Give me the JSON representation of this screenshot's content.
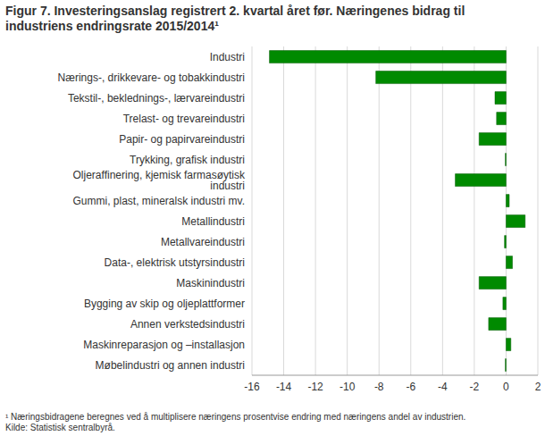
{
  "chart_data": {
    "type": "bar",
    "orientation": "horizontal",
    "title": "Figur 7. Investeringsanslag registrert 2. kvartal året før. Næringenes bidrag til industriens endringsrate 2015/2014¹",
    "footnote": "¹ Næringsbidragene beregnes ved å multiplisere næringens prosentvise endring med næringens andel av industrien.",
    "source": "Kilde: Statistisk sentralbyrå.",
    "categories": [
      "Industri",
      "Nærings-, drikkevare- og tobakkindustri",
      "Tekstil-, beklednings-, lærvareindustri",
      "Trelast- og trevareindustri",
      "Papir- og papirvareindustri",
      "Trykking, grafisk industri",
      "Oljeraffinering, kjemisk farmasøytisk industri",
      "Gummi, plast, mineralsk industri mv.",
      "Metallindustri",
      "Metallvareindustri",
      "Data-, elektrisk utstyrsindustri",
      "Maskinindustri",
      "Bygging av skip og oljeplattformer",
      "Annen verkstedsindustri",
      "Maskinreparasjon og –installasjon",
      "Møbelindustri og annen industri"
    ],
    "values": [
      -14.9,
      -8.2,
      -0.7,
      -0.6,
      -1.7,
      -0.05,
      -3.2,
      0.2,
      1.2,
      -0.1,
      0.4,
      -1.7,
      -0.2,
      -1.1,
      0.3,
      -0.05
    ],
    "color": "#008a00",
    "xlim": [
      -16,
      2
    ],
    "xticks": [
      -16,
      -14,
      -12,
      -10,
      -8,
      -6,
      -4,
      -2,
      0,
      2
    ],
    "grid": true
  }
}
